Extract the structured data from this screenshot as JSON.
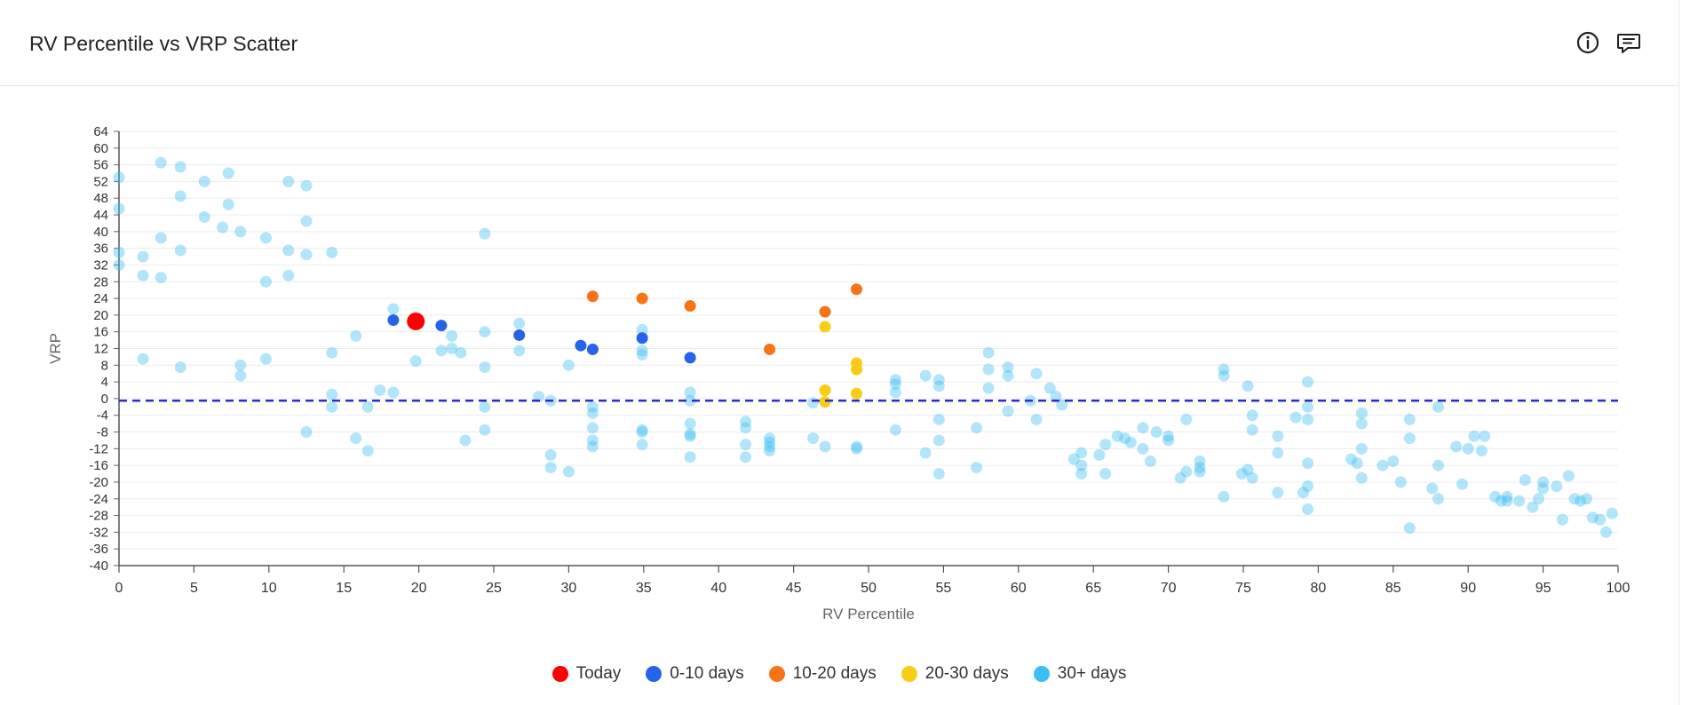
{
  "header": {
    "title": "RV Percentile vs VRP Scatter",
    "info_icon": "info-circle-icon",
    "comment_icon": "comment-icon"
  },
  "colors": {
    "today": "#ff0000",
    "d0_10": "#2563eb",
    "d10_20": "#f97316",
    "d20_30": "#facc15",
    "d30_plus": "#3bbdf6",
    "zero_line": "#2b2bd6"
  },
  "chart_data": {
    "type": "scatter",
    "title": "RV Percentile vs VRP Scatter",
    "xlabel": "RV Percentile",
    "ylabel": "VRP",
    "xlim": [
      0,
      100
    ],
    "ylim": [
      -40,
      64
    ],
    "x_ticks": [
      "0",
      "5",
      "10",
      "15",
      "20",
      "25",
      "30",
      "35",
      "40",
      "45",
      "50",
      "55",
      "60",
      "65",
      "70",
      "75",
      "80",
      "85",
      "90",
      "95",
      "100"
    ],
    "y_ticks": [
      "64",
      "60",
      "56",
      "52",
      "48",
      "44",
      "40",
      "36",
      "32",
      "28",
      "24",
      "20",
      "16",
      "12",
      "8",
      "4",
      "0",
      "-4",
      "-8",
      "-12",
      "-16",
      "-20",
      "-24",
      "-28",
      "-32",
      "-36",
      "-40"
    ],
    "grid": "horizontal",
    "reference_line": {
      "y": -0.5,
      "style": "dashed"
    },
    "legend_position": "bottom-center",
    "series": [
      {
        "name": "Today",
        "color_key": "today",
        "points": [
          [
            19.8,
            18.5
          ]
        ]
      },
      {
        "name": "0-10 days",
        "color_key": "d0_10",
        "points": [
          [
            18.3,
            18.8
          ],
          [
            21.5,
            17.5
          ],
          [
            26.7,
            15.2
          ],
          [
            30.8,
            12.7
          ],
          [
            31.6,
            11.8
          ],
          [
            34.9,
            14.5
          ],
          [
            38.1,
            9.8
          ]
        ]
      },
      {
        "name": "10-20 days",
        "color_key": "d10_20",
        "points": [
          [
            31.6,
            24.5
          ],
          [
            34.9,
            24.0
          ],
          [
            38.1,
            22.2
          ],
          [
            43.4,
            11.8
          ],
          [
            47.1,
            20.8
          ],
          [
            49.2,
            26.2
          ]
        ]
      },
      {
        "name": "20-30 days",
        "color_key": "d20_30",
        "points": [
          [
            47.1,
            17.2
          ],
          [
            47.1,
            2.0
          ],
          [
            47.1,
            -0.8
          ],
          [
            49.2,
            8.5
          ],
          [
            49.2,
            7.0
          ],
          [
            49.2,
            1.2
          ]
        ]
      },
      {
        "name": "30+ days",
        "color_key": "d30_plus",
        "points": [
          [
            0.0,
            53
          ],
          [
            0.0,
            45.5
          ],
          [
            0.0,
            35
          ],
          [
            0.0,
            32
          ],
          [
            1.6,
            34
          ],
          [
            1.6,
            29.5
          ],
          [
            1.6,
            9.5
          ],
          [
            2.8,
            56.5
          ],
          [
            2.8,
            38.5
          ],
          [
            2.8,
            29
          ],
          [
            4.1,
            55.5
          ],
          [
            4.1,
            48.5
          ],
          [
            4.1,
            35.5
          ],
          [
            4.1,
            7.5
          ],
          [
            5.7,
            52
          ],
          [
            5.7,
            43.5
          ],
          [
            6.9,
            41
          ],
          [
            7.3,
            54
          ],
          [
            7.3,
            46.5
          ],
          [
            8.1,
            40
          ],
          [
            8.1,
            8
          ],
          [
            8.1,
            5.5
          ],
          [
            9.8,
            38.5
          ],
          [
            9.8,
            28
          ],
          [
            9.8,
            9.5
          ],
          [
            11.3,
            52
          ],
          [
            11.3,
            35.5
          ],
          [
            11.3,
            29.5
          ],
          [
            12.5,
            51
          ],
          [
            12.5,
            42.5
          ],
          [
            12.5,
            34.5
          ],
          [
            12.5,
            -8
          ],
          [
            14.2,
            35
          ],
          [
            14.2,
            11
          ],
          [
            14.2,
            1
          ],
          [
            14.2,
            -2
          ],
          [
            15.8,
            15
          ],
          [
            15.8,
            -9.5
          ],
          [
            16.6,
            -2
          ],
          [
            16.6,
            -12.5
          ],
          [
            17.4,
            2
          ],
          [
            18.3,
            21.5
          ],
          [
            18.3,
            1.5
          ],
          [
            19.8,
            9
          ],
          [
            21.5,
            11.5
          ],
          [
            22.2,
            15
          ],
          [
            22.2,
            12
          ],
          [
            22.8,
            11
          ],
          [
            23.1,
            -10
          ],
          [
            24.4,
            39.5
          ],
          [
            24.4,
            16
          ],
          [
            24.4,
            7.5
          ],
          [
            24.4,
            -2
          ],
          [
            24.4,
            -7.5
          ],
          [
            26.7,
            18
          ],
          [
            26.7,
            11.5
          ],
          [
            28,
            0.5
          ],
          [
            28.8,
            -13.5
          ],
          [
            28.8,
            -16.5
          ],
          [
            28.8,
            -0.5
          ],
          [
            30,
            8
          ],
          [
            30,
            -17.5
          ],
          [
            31.6,
            -2
          ],
          [
            31.6,
            -3.5
          ],
          [
            31.6,
            -7
          ],
          [
            31.6,
            -10
          ],
          [
            31.6,
            -11.5
          ],
          [
            34.9,
            16.5
          ],
          [
            34.9,
            11.5
          ],
          [
            34.9,
            10.5
          ],
          [
            34.9,
            -7.5
          ],
          [
            34.9,
            -8
          ],
          [
            34.9,
            -11
          ],
          [
            38.1,
            1.5
          ],
          [
            38.1,
            -0.5
          ],
          [
            38.1,
            -6
          ],
          [
            38.1,
            -8.5
          ],
          [
            38.1,
            -9
          ],
          [
            38.1,
            -14
          ],
          [
            41.8,
            -5.5
          ],
          [
            41.8,
            -7
          ],
          [
            41.8,
            -11
          ],
          [
            41.8,
            -14
          ],
          [
            43.4,
            -9.5
          ],
          [
            43.4,
            -10.5
          ],
          [
            43.4,
            -11.5
          ],
          [
            43.4,
            -12.5
          ],
          [
            46.3,
            -1
          ],
          [
            46.3,
            -9.5
          ],
          [
            47.1,
            -11.5
          ],
          [
            49.2,
            -11.5
          ],
          [
            49.2,
            -12
          ],
          [
            51.8,
            4.5
          ],
          [
            51.8,
            3.5
          ],
          [
            51.8,
            1.5
          ],
          [
            51.8,
            -7.5
          ],
          [
            53.8,
            5.5
          ],
          [
            53.8,
            -13
          ],
          [
            54.7,
            4.5
          ],
          [
            54.7,
            3
          ],
          [
            54.7,
            -5
          ],
          [
            54.7,
            -10
          ],
          [
            54.7,
            -18
          ],
          [
            57.2,
            -7
          ],
          [
            57.2,
            -16.5
          ],
          [
            58.0,
            11
          ],
          [
            58.0,
            7
          ],
          [
            58.0,
            2.5
          ],
          [
            59.3,
            7.5
          ],
          [
            59.3,
            5.5
          ],
          [
            59.3,
            -3
          ],
          [
            60.8,
            -0.5
          ],
          [
            61.2,
            6
          ],
          [
            61.2,
            -5
          ],
          [
            62.1,
            2.5
          ],
          [
            62.5,
            0.5
          ],
          [
            62.9,
            -1.5
          ],
          [
            63.7,
            -14.5
          ],
          [
            64.2,
            -13
          ],
          [
            64.2,
            -16
          ],
          [
            64.2,
            -18
          ],
          [
            65.4,
            -13.5
          ],
          [
            65.8,
            -11
          ],
          [
            65.8,
            -18
          ],
          [
            66.6,
            -9
          ],
          [
            67.1,
            -9.5
          ],
          [
            67.5,
            -10.5
          ],
          [
            68.3,
            -7
          ],
          [
            68.3,
            -12
          ],
          [
            68.8,
            -15
          ],
          [
            69.2,
            -8
          ],
          [
            70,
            -9
          ],
          [
            70,
            -10
          ],
          [
            70.8,
            -19
          ],
          [
            71.2,
            -5
          ],
          [
            71.2,
            -17.5
          ],
          [
            72.1,
            -15
          ],
          [
            72.1,
            -16.5
          ],
          [
            72.1,
            -17.5
          ],
          [
            73.7,
            7
          ],
          [
            73.7,
            5.5
          ],
          [
            73.7,
            -23.5
          ],
          [
            74.9,
            -18
          ],
          [
            75.3,
            3
          ],
          [
            75.3,
            -17
          ],
          [
            75.6,
            -4
          ],
          [
            75.6,
            -7.5
          ],
          [
            75.6,
            -19
          ],
          [
            77.3,
            -9
          ],
          [
            77.3,
            -13
          ],
          [
            77.3,
            -22.5
          ],
          [
            78.5,
            -4.5
          ],
          [
            79.0,
            -22.5
          ],
          [
            79.3,
            4
          ],
          [
            79.3,
            -2
          ],
          [
            79.3,
            -5
          ],
          [
            79.3,
            -15.5
          ],
          [
            79.3,
            -21
          ],
          [
            79.3,
            -26.5
          ],
          [
            82.2,
            -14.5
          ],
          [
            82.6,
            -15.5
          ],
          [
            82.9,
            -3.5
          ],
          [
            82.9,
            -6
          ],
          [
            82.9,
            -12
          ],
          [
            82.9,
            -19
          ],
          [
            84.3,
            -16
          ],
          [
            85.0,
            -15
          ],
          [
            85.5,
            -20
          ],
          [
            86.1,
            -5
          ],
          [
            86.1,
            -9.5
          ],
          [
            86.1,
            -31
          ],
          [
            87.6,
            -21.5
          ],
          [
            88.0,
            -2
          ],
          [
            88.0,
            -16
          ],
          [
            88.0,
            -24
          ],
          [
            89.2,
            -11.5
          ],
          [
            89.6,
            -20.5
          ],
          [
            90.0,
            -12
          ],
          [
            90.4,
            -9
          ],
          [
            90.9,
            -12.5
          ],
          [
            91.1,
            -9
          ],
          [
            91.8,
            -23.5
          ],
          [
            92.2,
            -24.5
          ],
          [
            92.6,
            -23.5
          ],
          [
            92.6,
            -24.5
          ],
          [
            93.4,
            -24.5
          ],
          [
            93.8,
            -19.5
          ],
          [
            94.3,
            -26
          ],
          [
            94.7,
            -24
          ],
          [
            95,
            -20
          ],
          [
            95,
            -21.5
          ],
          [
            95.9,
            -21
          ],
          [
            96.3,
            -29
          ],
          [
            96.7,
            -18.5
          ],
          [
            97.1,
            -24
          ],
          [
            97.5,
            -24.5
          ],
          [
            97.9,
            -24
          ],
          [
            98.3,
            -28.5
          ],
          [
            98.8,
            -29
          ],
          [
            99.2,
            -32
          ],
          [
            99.6,
            -27.5
          ]
        ]
      }
    ]
  }
}
